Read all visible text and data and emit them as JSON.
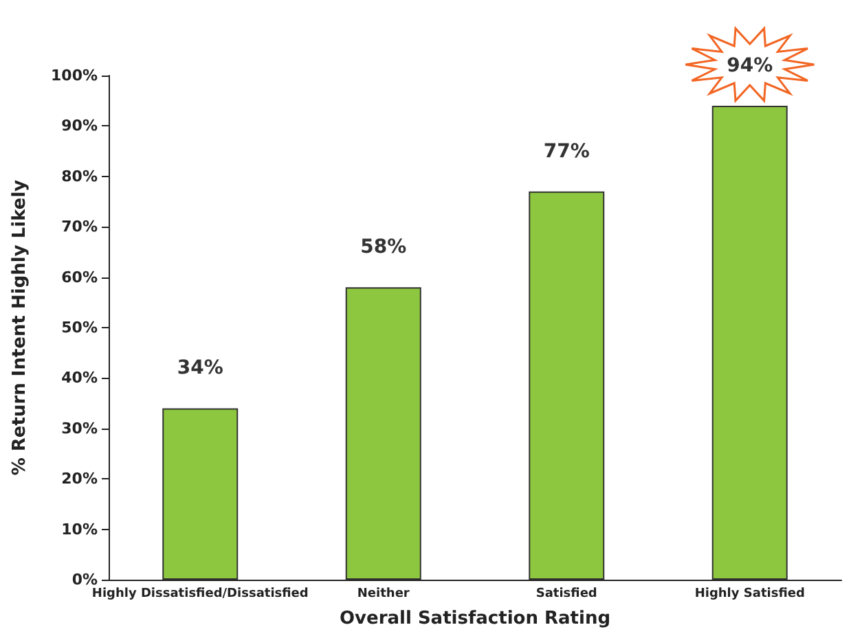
{
  "chart_data": {
    "type": "bar",
    "xlabel": "Overall Satisfaction Rating",
    "ylabel": "% Return Intent Highly Likely",
    "categories": [
      "Highly Dissatisfied/Dissatisfied",
      "Neither",
      "Satisfied",
      "Highly Satisfied"
    ],
    "values": [
      34,
      58,
      77,
      94
    ],
    "color": "#8dc63f",
    "value_labels": [
      "34%",
      "58%",
      "77%",
      "94%"
    ],
    "ylim": [
      0,
      100
    ],
    "yticks": [
      {
        "value": 0,
        "label": "0%"
      },
      {
        "value": 10,
        "label": "10%"
      },
      {
        "value": 20,
        "label": "20%"
      },
      {
        "value": 30,
        "label": "30%"
      },
      {
        "value": 40,
        "label": "40%"
      },
      {
        "value": 50,
        "label": "50%"
      },
      {
        "value": 60,
        "label": "60%"
      },
      {
        "value": 70,
        "label": "70%"
      },
      {
        "value": 80,
        "label": "80%"
      },
      {
        "value": 90,
        "label": "90%"
      },
      {
        "value": 100,
        "label": "100%"
      }
    ],
    "grid": false
  }
}
